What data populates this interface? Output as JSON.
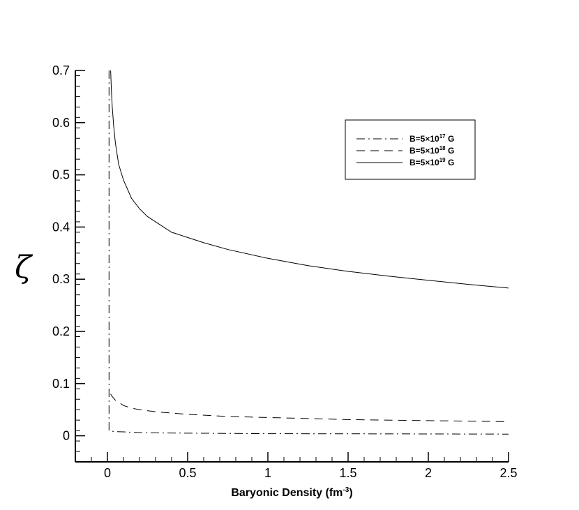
{
  "chart_data": {
    "type": "line",
    "title": "",
    "xlabel": {
      "prefix": "Baryonic Density (fm",
      "sup": "-3",
      "suffix": ")"
    },
    "ylabel": "ζ",
    "xlim": [
      -0.2,
      2.5
    ],
    "ylim": [
      -0.05,
      0.7
    ],
    "xticks": [
      0,
      0.5,
      1,
      1.5,
      2,
      2.5
    ],
    "xtick_labels": [
      "0",
      "0.5",
      "1",
      "1.5",
      "2",
      "2.5"
    ],
    "yticks": [
      0,
      0.1,
      0.2,
      0.3,
      0.4,
      0.5,
      0.6,
      0.7
    ],
    "ytick_labels": [
      "0",
      "0.1",
      "0.2",
      "0.3",
      "0.4",
      "0.5",
      "0.6",
      "0.7"
    ],
    "grid": false,
    "legend_position": "top-right",
    "series": [
      {
        "name": {
          "prefix": "B=5×10",
          "sup": "17",
          "suffix": " G"
        },
        "style": "dashdot",
        "color": "#000000",
        "x": [
          0.01,
          0.01,
          0.02,
          0.05,
          0.1,
          0.2,
          0.3,
          0.5,
          0.75,
          1.0,
          1.5,
          2.0,
          2.5
        ],
        "y": [
          0.7,
          0.01,
          0.009,
          0.008,
          0.0075,
          0.006,
          0.0055,
          0.005,
          0.0045,
          0.004,
          0.0038,
          0.0035,
          0.0032
        ]
      },
      {
        "name": {
          "prefix": "B=5×10",
          "sup": "18",
          "suffix": " G"
        },
        "style": "dashed",
        "color": "#000000",
        "x": [
          0.02,
          0.03,
          0.05,
          0.08,
          0.1,
          0.15,
          0.2,
          0.3,
          0.5,
          0.75,
          1.0,
          1.25,
          1.5,
          2.0,
          2.5
        ],
        "y": [
          0.08,
          0.075,
          0.068,
          0.062,
          0.058,
          0.053,
          0.05,
          0.046,
          0.041,
          0.037,
          0.035,
          0.033,
          0.031,
          0.029,
          0.027
        ]
      },
      {
        "name": {
          "prefix": "B=5×10",
          "sup": "19",
          "suffix": " G"
        },
        "style": "solid",
        "color": "#000000",
        "x": [
          0.02,
          0.025,
          0.03,
          0.04,
          0.05,
          0.07,
          0.1,
          0.15,
          0.2,
          0.25,
          0.3,
          0.4,
          0.5,
          0.6,
          0.75,
          1.0,
          1.25,
          1.5,
          1.75,
          2.0,
          2.25,
          2.5
        ],
        "y": [
          0.7,
          0.66,
          0.63,
          0.59,
          0.56,
          0.52,
          0.49,
          0.455,
          0.435,
          0.42,
          0.41,
          0.39,
          0.38,
          0.37,
          0.357,
          0.34,
          0.326,
          0.315,
          0.306,
          0.298,
          0.29,
          0.283
        ]
      }
    ]
  }
}
